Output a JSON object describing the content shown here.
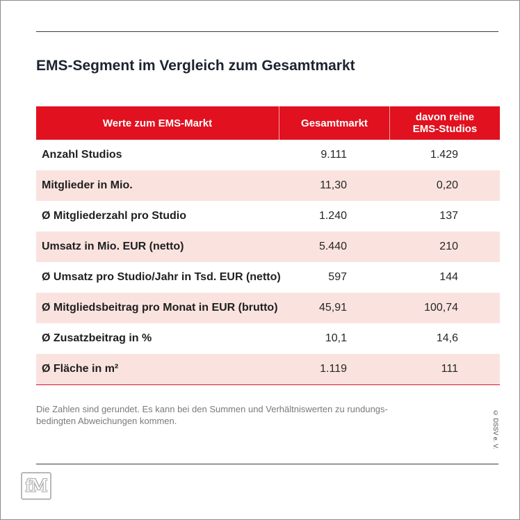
{
  "title": "EMS-Segment im Vergleich zum Gesamtmarkt",
  "table": {
    "headers": [
      "Werte zum EMS-Markt",
      "Gesamtmarkt",
      "davon reine EMS-Studios"
    ],
    "rows": [
      {
        "label": "Anzahl Studios",
        "gesamt": "9.111",
        "ems": "1.429"
      },
      {
        "label": "Mitglieder in Mio.",
        "gesamt": "11,30",
        "ems": "0,20"
      },
      {
        "label": "Ø Mitgliederzahl pro Studio",
        "gesamt": "1.240",
        "ems": "137"
      },
      {
        "label": "Umsatz in Mio. EUR (netto)",
        "gesamt": "5.440",
        "ems": "210"
      },
      {
        "label": "Ø Umsatz pro Studio/Jahr in Tsd. EUR (netto)",
        "gesamt": "597",
        "ems": "144"
      },
      {
        "label": "Ø Mitgliedsbeitrag pro Monat in EUR (brutto)",
        "gesamt": "45,91",
        "ems": "100,74"
      },
      {
        "label": "Ø Zusatzbeitrag in %",
        "gesamt": "10,1",
        "ems": "14,6"
      },
      {
        "label": "Ø Fläche in m²",
        "gesamt": "1.119",
        "ems": "111"
      }
    ]
  },
  "note": "Die Zahlen sind gerundet. Es kann bei den Summen und Verhältniswerten zu rundungs-bedingten Abweichungen kommen.",
  "copyright": "© DSSV e. V.",
  "logo": "fM",
  "colors": {
    "header": "#e1111f",
    "alt_row": "#fae3df"
  },
  "chart_data": {
    "type": "table",
    "title": "EMS-Segment im Vergleich zum Gesamtmarkt",
    "columns": [
      "Werte zum EMS-Markt",
      "Gesamtmarkt",
      "davon reine EMS-Studios"
    ],
    "rows": [
      [
        "Anzahl Studios",
        "9.111",
        "1.429"
      ],
      [
        "Mitglieder in Mio.",
        "11,30",
        "0,20"
      ],
      [
        "Ø Mitgliederzahl pro Studio",
        "1.240",
        "137"
      ],
      [
        "Umsatz in Mio. EUR (netto)",
        "5.440",
        "210"
      ],
      [
        "Ø Umsatz pro Studio/Jahr in Tsd. EUR (netto)",
        "597",
        "144"
      ],
      [
        "Ø Mitgliedsbeitrag pro Monat in EUR (brutto)",
        "45,91",
        "100,74"
      ],
      [
        "Ø Zusatzbeitrag in %",
        "10,1",
        "14,6"
      ],
      [
        "Ø Fläche in m²",
        "1.119",
        "111"
      ]
    ]
  }
}
